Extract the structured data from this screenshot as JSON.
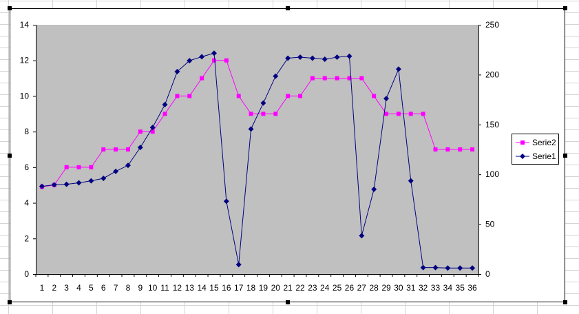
{
  "chart_data": {
    "type": "line",
    "title": "",
    "xlabel": "",
    "ylabel": "",
    "categories": [
      "1",
      "2",
      "3",
      "4",
      "5",
      "6",
      "7",
      "8",
      "9",
      "10",
      "11",
      "12",
      "13",
      "14",
      "15",
      "16",
      "17",
      "18",
      "19",
      "20",
      "21",
      "22",
      "23",
      "24",
      "25",
      "26",
      "27",
      "28",
      "29",
      "30",
      "31",
      "32",
      "33",
      "34",
      "35",
      "36"
    ],
    "y_left_ticks": [
      "0",
      "2",
      "4",
      "6",
      "8",
      "10",
      "12",
      "14"
    ],
    "y_right_ticks": [
      "0",
      "50",
      "100",
      "150",
      "200",
      "250"
    ],
    "ylim_left": [
      0,
      14
    ],
    "ylim_right": [
      0,
      250
    ],
    "grid": false,
    "plot_background": "#c0c0c0",
    "legend_position": "right",
    "series": [
      {
        "name": "Serie2",
        "axis": "left",
        "color": "#ff00ff",
        "marker": "square",
        "values": [
          4.9,
          5,
          6,
          6,
          6,
          7,
          7,
          7,
          8,
          8,
          9,
          10,
          10,
          11,
          12,
          12,
          10,
          9,
          9,
          9,
          10,
          10,
          11,
          11,
          11,
          11,
          11,
          10,
          9,
          9,
          9,
          9,
          7,
          7,
          7,
          7
        ]
      },
      {
        "name": "Serie1",
        "axis": "right",
        "color": "#000080",
        "marker": "diamond",
        "values": [
          88,
          89.5,
          90,
          91.5,
          93.5,
          96,
          103,
          109,
          127,
          147,
          170,
          203,
          214,
          218,
          221.5,
          73,
          9.5,
          145.5,
          171.5,
          198.5,
          216.5,
          217.5,
          216.5,
          215.5,
          217.5,
          218.5,
          38.5,
          85,
          176,
          205.5,
          93.5,
          6.5,
          6.5,
          6,
          6,
          6
        ]
      }
    ]
  }
}
